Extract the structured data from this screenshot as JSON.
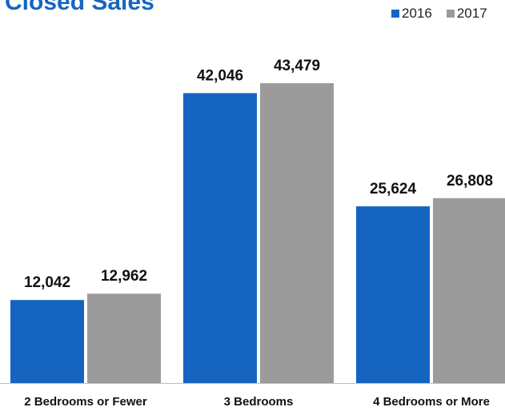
{
  "title": "Closed Sales",
  "legend": {
    "items": [
      {
        "name": "2016",
        "color": "#1565C0"
      },
      {
        "name": "2017",
        "color": "#9B9B9B"
      }
    ]
  },
  "chart_data": {
    "type": "bar",
    "title": "Closed Sales",
    "xlabel": "",
    "ylabel": "",
    "categories": [
      "2 Bedrooms or Fewer",
      "3 Bedrooms",
      "4 Bedrooms or More"
    ],
    "series": [
      {
        "name": "2016",
        "color": "#1565C0",
        "values": [
          12042,
          42046,
          25624
        ],
        "labels": [
          "12,042",
          "42,046",
          "25,624"
        ]
      },
      {
        "name": "2017",
        "color": "#9B9B9B",
        "values": [
          12962,
          43479,
          26808
        ],
        "labels": [
          "12,962",
          "43,479",
          "26,808"
        ]
      }
    ],
    "ylim": [
      0,
      50000
    ],
    "grid": false,
    "legend_position": "top-right"
  }
}
